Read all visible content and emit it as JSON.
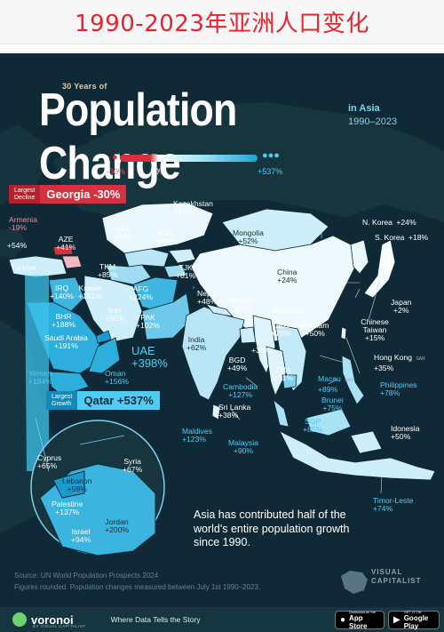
{
  "banner": {
    "title": "1990-2023年亚洲人口变化"
  },
  "header": {
    "kicker": "30 Years of",
    "title": "Population Change",
    "in_asia": "in Asia",
    "years": "1990–2023"
  },
  "legend": {
    "min": "-30%",
    "zero": "0%",
    "max": "+537%"
  },
  "colors": {
    "ocean": "#0f2a36",
    "decline": "#d7313f",
    "growth_high": "#1aa6d8",
    "growth_low": "#ffffff",
    "highlight_growth": "#4ecdf4"
  },
  "callouts": {
    "largest_decline_label_1": "Largest",
    "largest_decline_label_2": "Decline",
    "largest_decline_text": "Georgia -30%",
    "largest_growth_label_1": "Largest",
    "largest_growth_label_2": "Growth",
    "largest_growth_text": "Qatar +537%"
  },
  "map_data": {
    "countries": [
      {
        "name": "Armenia",
        "change": "-19%"
      },
      {
        "name": "AZE",
        "change": "+41%"
      },
      {
        "name": "Türkiye",
        "change": "+54%"
      },
      {
        "name": "IRQ",
        "change": "+140%"
      },
      {
        "name": "Kuwait",
        "change": "+161%"
      },
      {
        "name": "BHR",
        "change": "+188%"
      },
      {
        "name": "Saudi Arabia",
        "change": "+191%"
      },
      {
        "name": "Yemen",
        "change": "+184%"
      },
      {
        "name": "Oman",
        "change": "+156%"
      },
      {
        "name": "UAE",
        "change": "+398%"
      },
      {
        "name": "Iran",
        "change": "+50%"
      },
      {
        "name": "TKM",
        "change": "+85%"
      },
      {
        "name": "UZB",
        "change": "+64%"
      },
      {
        "name": "Kazakhstan",
        "change": "+14%"
      },
      {
        "name": "KGZ",
        "change": "+49%"
      },
      {
        "name": "TJK",
        "change": "+81%"
      },
      {
        "name": "AFG",
        "change": "+224%"
      },
      {
        "name": "PAK",
        "change": "+102%"
      },
      {
        "name": "India",
        "change": "+62%"
      },
      {
        "name": "Nepal",
        "change": "+48%"
      },
      {
        "name": "Bhutan",
        "change": "+31%"
      },
      {
        "name": "BGD",
        "change": "+49%"
      },
      {
        "name": "Sri Lanka",
        "change": "+38%"
      },
      {
        "name": "Maldives",
        "change": "+123%"
      },
      {
        "name": "Mongolia",
        "change": "+52%"
      },
      {
        "name": "China",
        "change": "+24%"
      },
      {
        "name": "N. Korea",
        "change": "+24%"
      },
      {
        "name": "S. Korea",
        "change": "+18%"
      },
      {
        "name": "Japan",
        "change": "+2%"
      },
      {
        "name": "Chinese Taiwan",
        "change": "+15%"
      },
      {
        "name": "Hong Kong",
        "change": "+35%"
      },
      {
        "name": "Macau",
        "change": "+89%"
      },
      {
        "name": "Myanmar",
        "change": "+33%"
      },
      {
        "name": "Laos",
        "change": "+70%"
      },
      {
        "name": "Vietnam",
        "change": "+50%"
      },
      {
        "name": "THA",
        "change": "+31%"
      },
      {
        "name": "Cambodia",
        "change": "+127%"
      },
      {
        "name": "Philippines",
        "change": "+78%"
      },
      {
        "name": "Brunei",
        "change": "+75%"
      },
      {
        "name": "Malaysia",
        "change": "+90%"
      },
      {
        "name": "SGP",
        "change": "+85%"
      },
      {
        "name": "Idonesia",
        "change": "+50%"
      },
      {
        "name": "Timor-Leste",
        "change": "+74%"
      },
      {
        "name": "Cyprus",
        "change": "+65%"
      },
      {
        "name": "Syria",
        "change": "+67%"
      },
      {
        "name": "Lebanon",
        "change": "+59%"
      },
      {
        "name": "Palestine",
        "change": "+137%"
      },
      {
        "name": "Israel",
        "change": "+94%"
      },
      {
        "name": "Jordan",
        "change": "+200%"
      }
    ],
    "sar_label": "SAR"
  },
  "insight": "Asia has contributed half of the world's entire population growth since 1990.",
  "source": {
    "line1": "Source: UN World Population Prospects 2024",
    "line2": "Figures rounded. Population changes measured between July 1st 1990–2023."
  },
  "publisher": {
    "line1": "VISUAL",
    "line2": "CAPITALIST"
  },
  "footer": {
    "brand": "voronoi",
    "brand_sub": "BY VISUAL CAPITALIST",
    "tagline": "Where Data Tells the Story",
    "appstore_small": "Download on the",
    "appstore_big": "App Store",
    "gplay_small": "GET IT ON",
    "gplay_big": "Google Play"
  }
}
